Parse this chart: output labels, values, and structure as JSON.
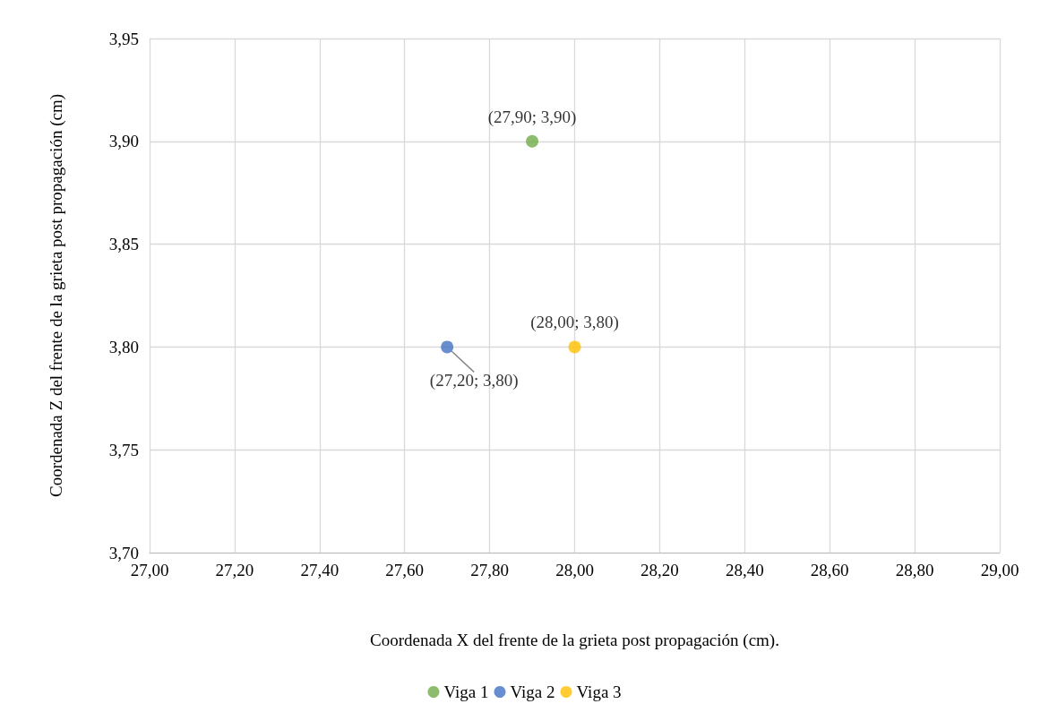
{
  "chart_data": {
    "type": "scatter",
    "xlabel": "Coordenada X del frente de la grieta post propagación (cm).",
    "ylabel": "Coordenada Z del frente de la grieta post propagación (cm)",
    "xlim": [
      27,
      29
    ],
    "xticks": [
      {
        "value": 27,
        "label": "27,00"
      },
      {
        "value": 27.2,
        "label": "27,20"
      },
      {
        "value": 27.4,
        "label": "27,40"
      },
      {
        "value": 27.6,
        "label": "27,60"
      },
      {
        "value": 27.8,
        "label": "27,80"
      },
      {
        "value": 28,
        "label": "28,00"
      },
      {
        "value": 28.2,
        "label": "28,20"
      },
      {
        "value": 28.4,
        "label": "28,40"
      },
      {
        "value": 28.6,
        "label": "28,60"
      },
      {
        "value": 28.8,
        "label": "28,80"
      },
      {
        "value": 29,
        "label": "29,00"
      }
    ],
    "ylim": [
      3.7,
      3.95
    ],
    "yticks": [
      {
        "value": 3.7,
        "label": "3,70"
      },
      {
        "value": 3.75,
        "label": "3,75"
      },
      {
        "value": 3.8,
        "label": "3,80"
      },
      {
        "value": 3.85,
        "label": "3,85"
      },
      {
        "value": 3.9,
        "label": "3,90"
      },
      {
        "value": 3.95,
        "label": "3,95"
      }
    ],
    "series": [
      {
        "name": "Viga 1",
        "color": "#70ad47",
        "x": [
          27.9
        ],
        "values": [
          3.9
        ],
        "value_labels": [
          "(27,90; 3,90)"
        ]
      },
      {
        "name": "Viga 2",
        "color": "#4472c4",
        "x": [
          27.7
        ],
        "values": [
          3.8
        ],
        "value_labels": [
          "(27,20; 3,80)"
        ]
      },
      {
        "name": "Viga 3",
        "color": "#ffc000",
        "x": [
          28.0
        ],
        "values": [
          3.8
        ],
        "value_labels": [
          "(28,00; 3,80)"
        ]
      }
    ],
    "grid": true,
    "legend": "bottom",
    "marker": "circle"
  }
}
